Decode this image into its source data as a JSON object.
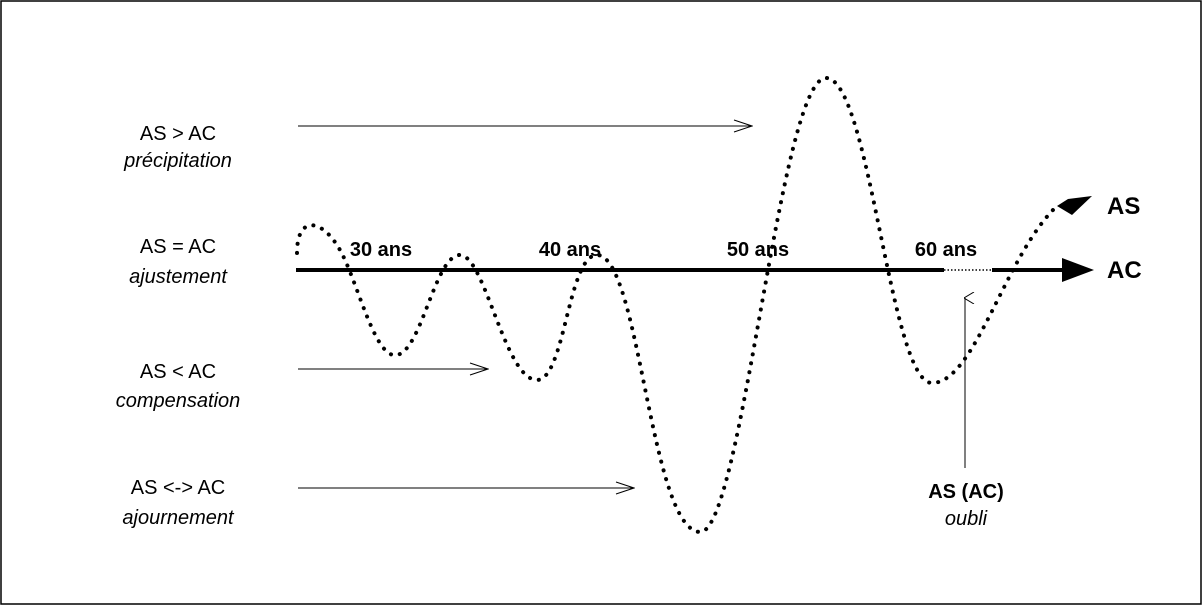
{
  "rows": [
    {
      "relation": "AS > AC",
      "term": "précipitation"
    },
    {
      "relation": "AS = AC",
      "term": "ajustement"
    },
    {
      "relation": "AS < AC",
      "term": "compensation"
    },
    {
      "relation": "AS <-> AC",
      "term": "ajournement"
    }
  ],
  "ages": [
    "30 ans",
    "40 ans",
    "50 ans",
    "60 ans"
  ],
  "curves": {
    "as": "AS",
    "ac": "AC"
  },
  "note": {
    "title": "AS (AC)",
    "term": "oubli"
  },
  "colors": {
    "ink": "#000000",
    "background": "#ffffff"
  }
}
